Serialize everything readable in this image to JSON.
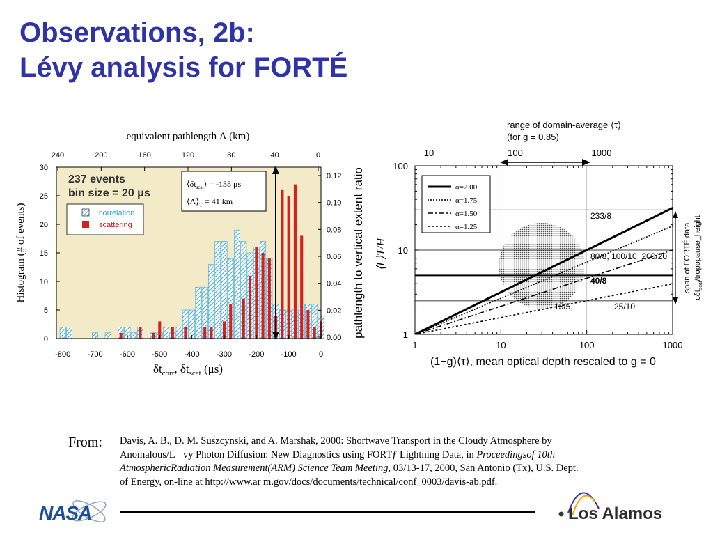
{
  "slide": {
    "title_line1": "Observations, 2b:",
    "title_line2": "Lévy analysis for FORTÉ"
  },
  "citation": {
    "from_label": "From:",
    "part1": "Davis, A. B., D. M. Suszcynski, and A. Marshak, 2000: Shortwave Transport in the Cloudy Atmosphere by Anomalous/L\u0000vy Photon Diffusion: New Diagnostics using FORTƒ Lightning Data, in ",
    "italic": "Proceedingsof 10th AtmosphericRadiation Measurement(ARM) Science Team Meeting",
    "part2": ", 03/13-17, 2000, San Antonio (Tx), U.S. Dept. of Energy, on-line at http://www.ar m.gov/docs/documents/technical/conf_0003/davis-ab.pdf."
  },
  "logos": {
    "nasa": "NASA",
    "los_alamos": "Los Alamos"
  },
  "colors": {
    "title": "#2f33a8",
    "correlation": "#3aa7d8",
    "scattering": "#d6201c",
    "histogram_bg": "#f3eac8"
  },
  "chart_data": [
    {
      "type": "bar",
      "xlabel_main": "δt",
      "xlabel_sub1": "corr",
      "xlabel_mid": ", δt",
      "xlabel_sub2": "scat",
      "xlabel_unit": " (μs)",
      "ylabel": "Histogram (# of events)",
      "ylabel_right": "pathlength to vertical extent ratio",
      "top_axis_label": "equivalent pathlength Λ (km)",
      "top_ticks": [
        "240",
        "200",
        "160",
        "120",
        "80",
        "40",
        "0"
      ],
      "xlim": [
        -820,
        0
      ],
      "ylim": [
        0,
        30
      ],
      "x_ticks": [
        -800,
        -700,
        -600,
        -500,
        -400,
        -300,
        -200,
        -100,
        0
      ],
      "y_ticks": [
        0,
        5,
        10,
        15,
        20,
        25,
        30
      ],
      "right_ticks": [
        "0.00",
        "0.02",
        "0.04",
        "0.06",
        "0.08",
        "0.10",
        "0.12"
      ],
      "events_text": "237 events",
      "bin_text": "bin size = 20 μs",
      "legend": [
        "correlation",
        "scattering"
      ],
      "annotation_line1": "⟨δt",
      "annotation_line1_sub": "scat",
      "annotation_line1_val": "⟩ = -138 μs",
      "annotation_line2": "⟨Λ⟩",
      "annotation_line2_sub": "T",
      "annotation_line2_val": " = 41 km",
      "series": [
        {
          "name": "correlation",
          "bins": [
            [
              -800,
              2
            ],
            [
              -780,
              2
            ],
            [
              -700,
              1
            ],
            [
              -660,
              1
            ],
            [
              -620,
              2
            ],
            [
              -600,
              2
            ],
            [
              -580,
              1
            ],
            [
              -560,
              2
            ],
            [
              -520,
              1
            ],
            [
              -500,
              1
            ],
            [
              -480,
              2
            ],
            [
              -460,
              1
            ],
            [
              -440,
              2
            ],
            [
              -420,
              5
            ],
            [
              -400,
              5
            ],
            [
              -380,
              9
            ],
            [
              -360,
              9
            ],
            [
              -340,
              13
            ],
            [
              -320,
              17
            ],
            [
              -300,
              17
            ],
            [
              -280,
              14
            ],
            [
              -260,
              19
            ],
            [
              -240,
              17
            ],
            [
              -220,
              15
            ],
            [
              -200,
              16
            ],
            [
              -180,
              17
            ],
            [
              -160,
              14
            ],
            [
              -140,
              6
            ],
            [
              -120,
              5
            ],
            [
              -100,
              5
            ],
            [
              -80,
              5
            ],
            [
              -60,
              6
            ],
            [
              -40,
              6
            ],
            [
              -20,
              6
            ],
            [
              0,
              4
            ]
          ]
        },
        {
          "name": "scattering",
          "bins": [
            [
              -620,
              1
            ],
            [
              -560,
              2
            ],
            [
              -520,
              1
            ],
            [
              -500,
              3
            ],
            [
              -460,
              2
            ],
            [
              -420,
              2
            ],
            [
              -360,
              2
            ],
            [
              -340,
              2
            ],
            [
              -300,
              3
            ],
            [
              -280,
              6
            ],
            [
              -240,
              7
            ],
            [
              -220,
              11
            ],
            [
              -200,
              16
            ],
            [
              -180,
              15
            ],
            [
              -160,
              14
            ],
            [
              -140,
              4
            ],
            [
              -120,
              26
            ],
            [
              -100,
              25
            ],
            [
              -80,
              27
            ],
            [
              -60,
              18
            ],
            [
              -40,
              5
            ],
            [
              -20,
              2
            ],
            [
              0,
              3
            ]
          ]
        }
      ]
    },
    {
      "type": "line",
      "x_scale": "log",
      "y_scale": "log",
      "xlim": [
        1,
        1000
      ],
      "ylim": [
        1,
        100
      ],
      "xlabel": "(1−g)⟨τ⟩,  mean optical depth rescaled to g = 0",
      "ylabel": "⟨L⟩T/H",
      "x_ticks": [
        "1",
        "10",
        "100",
        "1000"
      ],
      "y_ticks": [
        "1",
        "10",
        "100"
      ],
      "top_ticks": [
        "10",
        "100",
        "1000"
      ],
      "top_title_line1": "range of domain-average ⟨τ⟩",
      "top_title_line2": "(for g = 0.85)",
      "right_note_line1": "span of FORTÉ data",
      "right_note_line2": "cδt",
      "right_note_line2b": "/tropopause_height",
      "right_note_sub": "scat",
      "labels": {
        "l233_8": "233/8",
        "l80_8": "80/8, 100/10, 200/20",
        "l40_8": "40/8",
        "l13_5": "13/5,",
        "l25_10": "25/10"
      },
      "hlines": [
        30,
        10,
        5,
        2.5
      ],
      "series": [
        {
          "name": "α=2.00",
          "exponent": 0.5,
          "style": "solid"
        },
        {
          "name": "α=1.75",
          "exponent": 0.4286,
          "style": "dotted"
        },
        {
          "name": "α=1.50",
          "exponent": 0.3333,
          "style": "dashdot"
        },
        {
          "name": "α=1.25",
          "exponent": 0.2,
          "style": "dashed"
        }
      ],
      "shaded_region": {
        "x_center": 30,
        "y_center": 6.5,
        "x_range": [
          10,
          100
        ]
      }
    }
  ]
}
